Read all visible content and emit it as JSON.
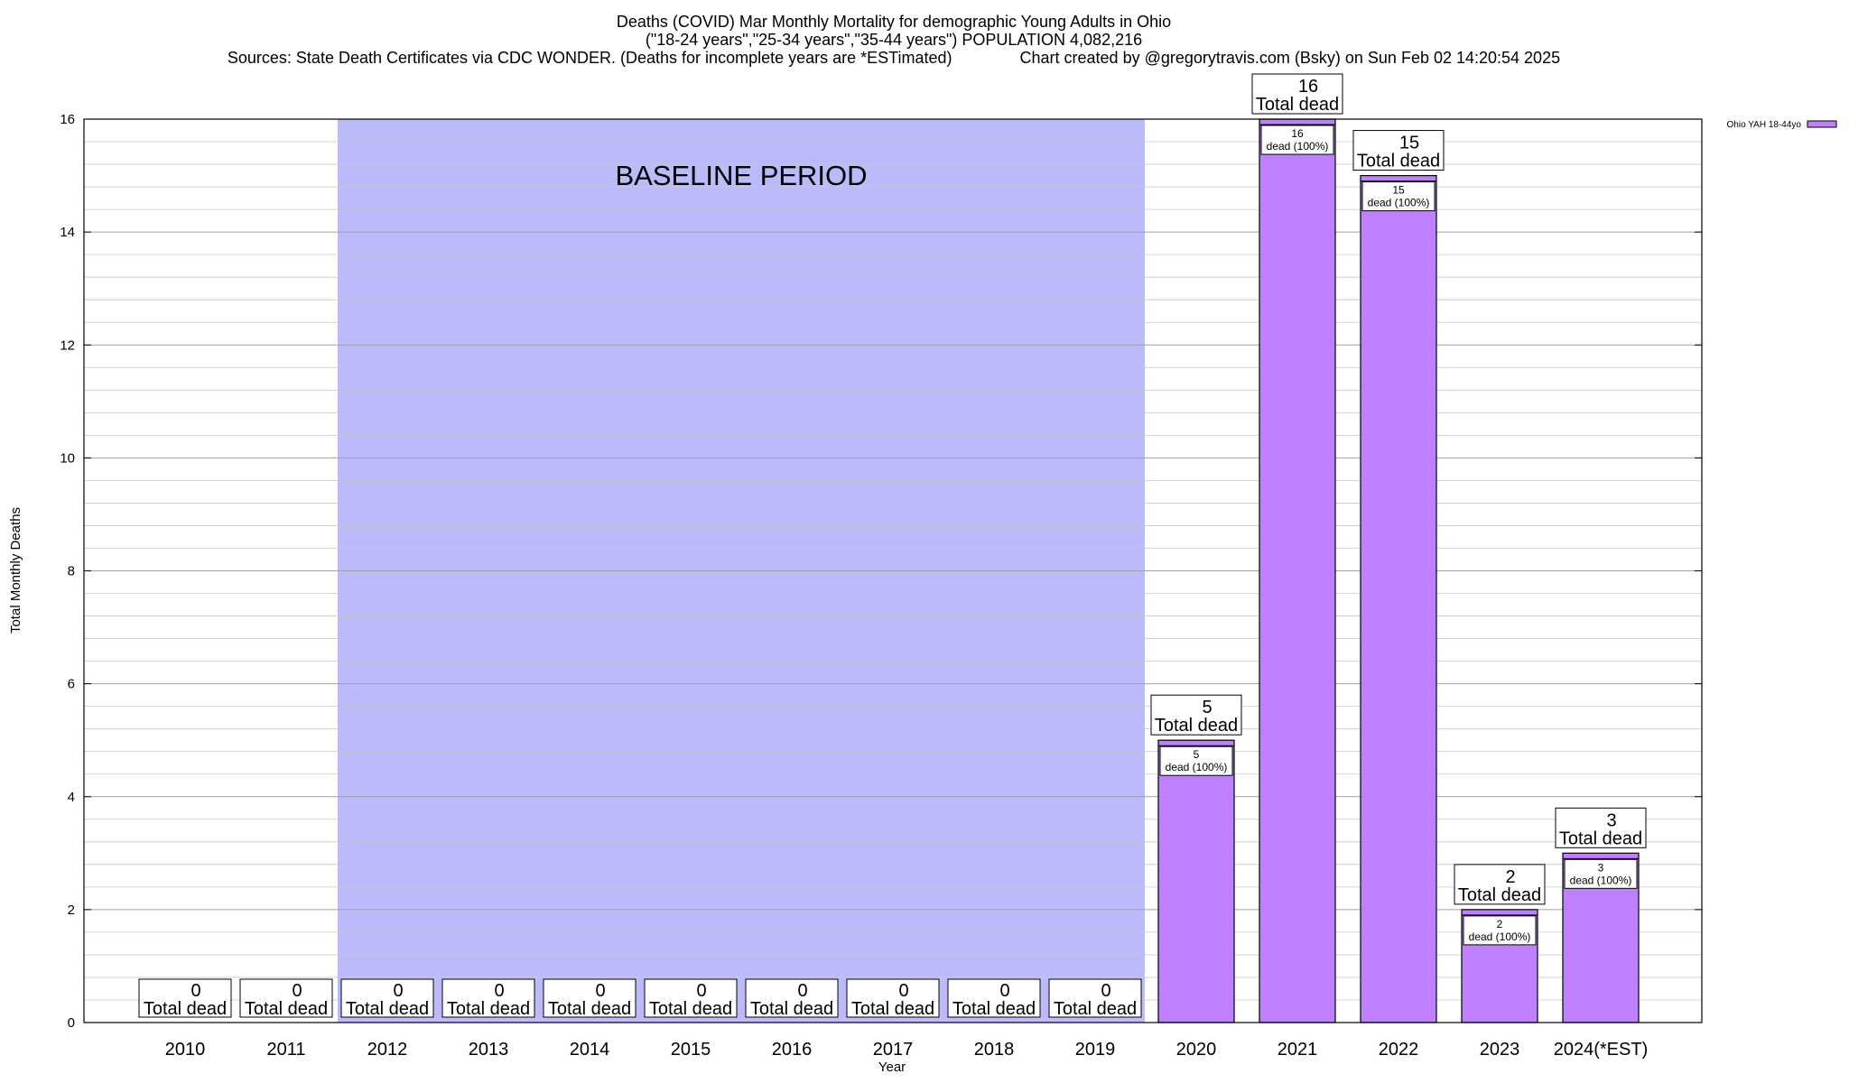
{
  "titles": {
    "line1": "Deaths (COVID) Mar Monthly Mortality for demographic Young Adults in Ohio",
    "line2": "(\"18-24 years\",\"25-34 years\",\"35-44 years\") POPULATION 4,082,216",
    "line3": "Sources: State Death Certificates via CDC WONDER. (Deaths for incomplete years are *ESTimated)               Chart created by @gregorytravis.com (Bsky) on Sun Feb 02 14:20:54 2025"
  },
  "chart_data": {
    "type": "bar",
    "categories": [
      "2010",
      "2011",
      "2012",
      "2013",
      "2014",
      "2015",
      "2016",
      "2017",
      "2018",
      "2019",
      "2020",
      "2021",
      "2022",
      "2023",
      "2024(*EST)"
    ],
    "series": [
      {
        "name": "Ohio YAH 18-44yo",
        "values": [
          0,
          0,
          0,
          0,
          0,
          0,
          0,
          0,
          0,
          0,
          5,
          16,
          15,
          2,
          3
        ]
      }
    ],
    "total_label": "Total dead",
    "segment_label": "dead (100%)",
    "xlabel": "Year",
    "ylabel": "Total Monthly Deaths",
    "ylim": [
      0,
      16
    ],
    "yticks": [
      0,
      2,
      4,
      6,
      8,
      10,
      12,
      14,
      16
    ],
    "y_minor_step": 0.4,
    "grid": true,
    "legend_position": "top-right, outside plot",
    "baseline": {
      "label": "BASELINE PERIOD",
      "from": "2012",
      "to": "2019"
    },
    "colors": {
      "bar": "#bf80ff",
      "baseline": "#bbbbfb",
      "grid": "#a0a0a0"
    }
  }
}
